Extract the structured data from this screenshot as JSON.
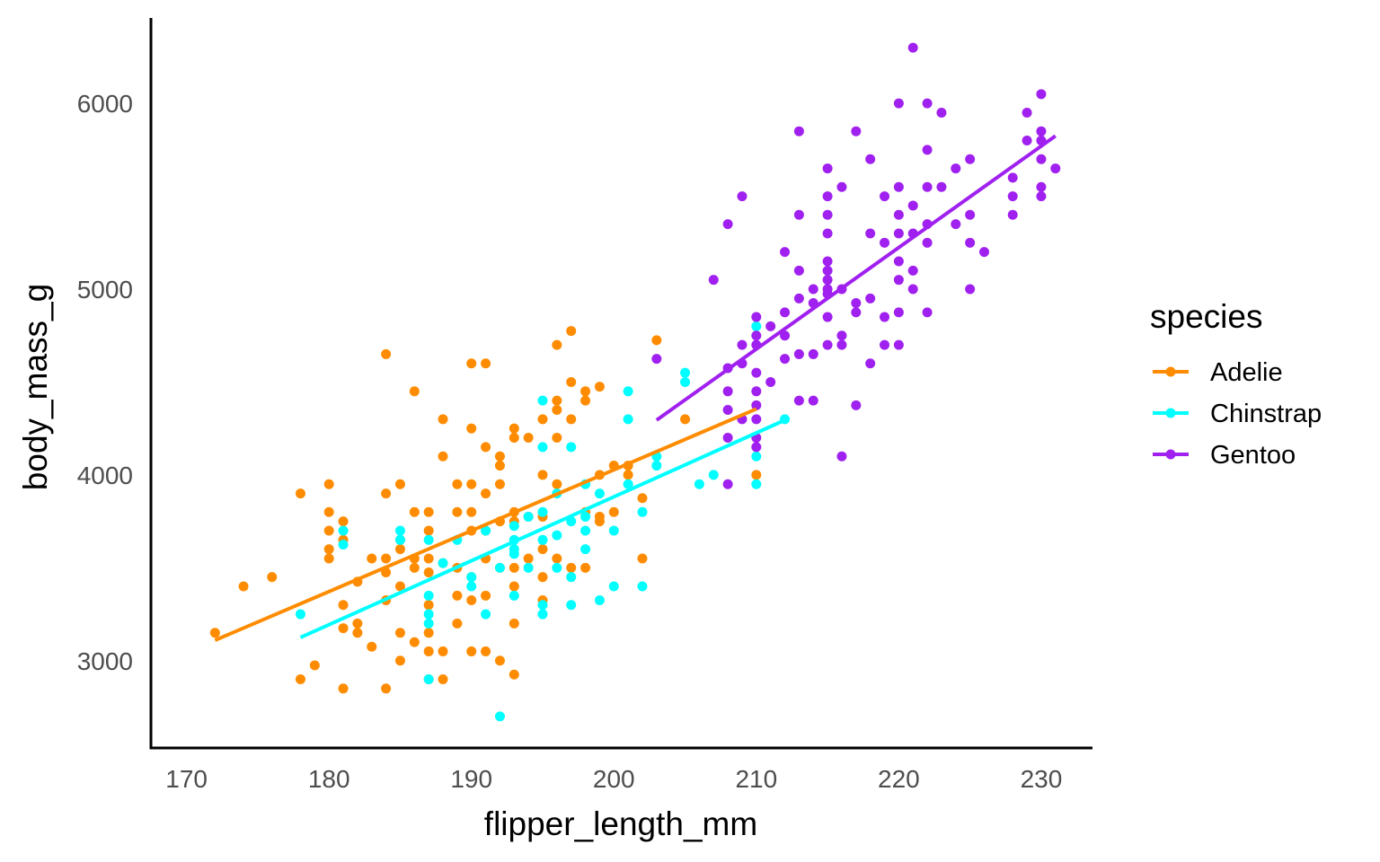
{
  "chart_data": {
    "type": "scatter",
    "title": "",
    "xlabel": "flipper_length_mm",
    "ylabel": "body_mass_g",
    "xlim": [
      167.5,
      233.6
    ],
    "ylim": [
      2530,
      6460
    ],
    "x_ticks": [
      170,
      180,
      190,
      200,
      210,
      220,
      230
    ],
    "y_ticks": [
      3000,
      4000,
      5000,
      6000
    ],
    "x_tick_labels": [
      "170",
      "180",
      "190",
      "200",
      "210",
      "220",
      "230"
    ],
    "y_tick_labels": [
      "3000",
      "4000",
      "5000",
      "6000"
    ],
    "grid": false,
    "legend": {
      "title": "species",
      "position": "right"
    },
    "series": [
      {
        "name": "Adelie",
        "color": "#FF8C00",
        "fit": {
          "x": [
            172,
            210
          ],
          "y": [
            3110,
            4355
          ]
        },
        "points": [
          [
            172,
            3150
          ],
          [
            174,
            3400
          ],
          [
            176,
            3450
          ],
          [
            178,
            3900
          ],
          [
            178,
            2900
          ],
          [
            179,
            2975
          ],
          [
            180,
            3950
          ],
          [
            180,
            3800
          ],
          [
            180,
            3700
          ],
          [
            180,
            3600
          ],
          [
            180,
            3550
          ],
          [
            181,
            3750
          ],
          [
            181,
            3650
          ],
          [
            181,
            3300
          ],
          [
            181,
            3175
          ],
          [
            181,
            2850
          ],
          [
            182,
            3200
          ],
          [
            182,
            3150
          ],
          [
            182,
            3425
          ],
          [
            183,
            3075
          ],
          [
            183,
            3550
          ],
          [
            184,
            4650
          ],
          [
            184,
            3900
          ],
          [
            184,
            3550
          ],
          [
            184,
            3475
          ],
          [
            184,
            3325
          ],
          [
            184,
            2850
          ],
          [
            185,
            3950
          ],
          [
            185,
            3650
          ],
          [
            185,
            3600
          ],
          [
            185,
            3400
          ],
          [
            185,
            3150
          ],
          [
            185,
            3000
          ],
          [
            186,
            4450
          ],
          [
            186,
            3800
          ],
          [
            186,
            3550
          ],
          [
            186,
            3500
          ],
          [
            186,
            3100
          ],
          [
            187,
            3800
          ],
          [
            187,
            3700
          ],
          [
            187,
            3550
          ],
          [
            187,
            3475
          ],
          [
            187,
            3300
          ],
          [
            187,
            3150
          ],
          [
            187,
            3050
          ],
          [
            187,
            2900
          ],
          [
            188,
            4300
          ],
          [
            188,
            4100
          ],
          [
            188,
            3525
          ],
          [
            188,
            3050
          ],
          [
            188,
            2900
          ],
          [
            189,
            3950
          ],
          [
            189,
            3800
          ],
          [
            189,
            3500
          ],
          [
            189,
            3350
          ],
          [
            189,
            3200
          ],
          [
            190,
            4600
          ],
          [
            190,
            4250
          ],
          [
            190,
            3950
          ],
          [
            190,
            3800
          ],
          [
            190,
            3700
          ],
          [
            190,
            3450
          ],
          [
            190,
            3325
          ],
          [
            190,
            3050
          ],
          [
            191,
            4600
          ],
          [
            191,
            4150
          ],
          [
            191,
            3900
          ],
          [
            191,
            3700
          ],
          [
            191,
            3550
          ],
          [
            191,
            3350
          ],
          [
            191,
            3050
          ],
          [
            192,
            4100
          ],
          [
            192,
            4050
          ],
          [
            192,
            3950
          ],
          [
            192,
            3750
          ],
          [
            192,
            3500
          ],
          [
            192,
            3000
          ],
          [
            193,
            4250
          ],
          [
            193,
            4200
          ],
          [
            193,
            3800
          ],
          [
            193,
            3750
          ],
          [
            193,
            3500
          ],
          [
            193,
            3400
          ],
          [
            193,
            3200
          ],
          [
            193,
            2925
          ],
          [
            194,
            4200
          ],
          [
            194,
            3775
          ],
          [
            194,
            3550
          ],
          [
            195,
            4300
          ],
          [
            195,
            4000
          ],
          [
            195,
            3775
          ],
          [
            195,
            3600
          ],
          [
            195,
            3450
          ],
          [
            195,
            3325
          ],
          [
            196,
            4700
          ],
          [
            196,
            4400
          ],
          [
            196,
            4350
          ],
          [
            196,
            4200
          ],
          [
            196,
            3950
          ],
          [
            196,
            3550
          ],
          [
            197,
            4775
          ],
          [
            197,
            4500
          ],
          [
            197,
            4300
          ],
          [
            197,
            3500
          ],
          [
            198,
            4450
          ],
          [
            198,
            4400
          ],
          [
            198,
            3800
          ],
          [
            198,
            3500
          ],
          [
            199,
            4475
          ],
          [
            199,
            4000
          ],
          [
            199,
            3775
          ],
          [
            199,
            3750
          ],
          [
            200,
            4050
          ],
          [
            200,
            3800
          ],
          [
            201,
            4050
          ],
          [
            201,
            4000
          ],
          [
            202,
            3875
          ],
          [
            202,
            3550
          ],
          [
            203,
            4725
          ],
          [
            205,
            4300
          ],
          [
            210,
            4000
          ]
        ]
      },
      {
        "name": "Chinstrap",
        "color": "#00FFFF",
        "fit": {
          "x": [
            178,
            212
          ],
          "y": [
            3125,
            4295
          ]
        },
        "points": [
          [
            178,
            3250
          ],
          [
            181,
            3700
          ],
          [
            181,
            3625
          ],
          [
            185,
            3700
          ],
          [
            185,
            3650
          ],
          [
            187,
            3650
          ],
          [
            187,
            3350
          ],
          [
            187,
            3250
          ],
          [
            187,
            3200
          ],
          [
            187,
            2900
          ],
          [
            188,
            3525
          ],
          [
            189,
            3650
          ],
          [
            190,
            3450
          ],
          [
            190,
            3400
          ],
          [
            191,
            3700
          ],
          [
            191,
            3250
          ],
          [
            192,
            3500
          ],
          [
            192,
            2700
          ],
          [
            193,
            3725
          ],
          [
            193,
            3650
          ],
          [
            193,
            3600
          ],
          [
            193,
            3575
          ],
          [
            193,
            3350
          ],
          [
            194,
            3775
          ],
          [
            194,
            3500
          ],
          [
            195,
            4400
          ],
          [
            195,
            4150
          ],
          [
            195,
            3800
          ],
          [
            195,
            3650
          ],
          [
            195,
            3300
          ],
          [
            195,
            3250
          ],
          [
            196,
            3900
          ],
          [
            196,
            3675
          ],
          [
            196,
            3500
          ],
          [
            197,
            4150
          ],
          [
            197,
            3750
          ],
          [
            197,
            3450
          ],
          [
            197,
            3300
          ],
          [
            198,
            3950
          ],
          [
            198,
            3775
          ],
          [
            198,
            3700
          ],
          [
            198,
            3600
          ],
          [
            199,
            3900
          ],
          [
            199,
            3325
          ],
          [
            200,
            3700
          ],
          [
            200,
            3400
          ],
          [
            201,
            4450
          ],
          [
            201,
            4300
          ],
          [
            201,
            3950
          ],
          [
            202,
            3800
          ],
          [
            202,
            3400
          ],
          [
            203,
            4100
          ],
          [
            203,
            4050
          ],
          [
            205,
            4550
          ],
          [
            205,
            4500
          ],
          [
            206,
            3950
          ],
          [
            207,
            4000
          ],
          [
            210,
            4800
          ],
          [
            210,
            4100
          ],
          [
            210,
            3950
          ],
          [
            212,
            4300
          ]
        ]
      },
      {
        "name": "Gentoo",
        "color": "#A020F0",
        "fit": {
          "x": [
            203,
            231
          ],
          "y": [
            4295,
            5825
          ]
        },
        "points": [
          [
            203,
            4625
          ],
          [
            207,
            5050
          ],
          [
            208,
            5350
          ],
          [
            208,
            4575
          ],
          [
            208,
            4450
          ],
          [
            208,
            4350
          ],
          [
            208,
            4200
          ],
          [
            208,
            3950
          ],
          [
            209,
            5500
          ],
          [
            209,
            4700
          ],
          [
            209,
            4600
          ],
          [
            209,
            4300
          ],
          [
            210,
            4850
          ],
          [
            210,
            4750
          ],
          [
            210,
            4700
          ],
          [
            210,
            4550
          ],
          [
            210,
            4450
          ],
          [
            210,
            4375
          ],
          [
            210,
            4300
          ],
          [
            210,
            4200
          ],
          [
            210,
            4150
          ],
          [
            211,
            4800
          ],
          [
            211,
            4500
          ],
          [
            212,
            5200
          ],
          [
            212,
            4875
          ],
          [
            212,
            4750
          ],
          [
            212,
            4625
          ],
          [
            213,
            5850
          ],
          [
            213,
            5400
          ],
          [
            213,
            5100
          ],
          [
            213,
            4950
          ],
          [
            213,
            4650
          ],
          [
            213,
            4400
          ],
          [
            214,
            5000
          ],
          [
            214,
            4925
          ],
          [
            214,
            4650
          ],
          [
            214,
            4400
          ],
          [
            215,
            5650
          ],
          [
            215,
            5500
          ],
          [
            215,
            5400
          ],
          [
            215,
            5300
          ],
          [
            215,
            5150
          ],
          [
            215,
            5100
          ],
          [
            215,
            5050
          ],
          [
            215,
            5000
          ],
          [
            215,
            4975
          ],
          [
            215,
            4850
          ],
          [
            215,
            4700
          ],
          [
            216,
            5550
          ],
          [
            216,
            5000
          ],
          [
            216,
            4750
          ],
          [
            216,
            4700
          ],
          [
            216,
            4100
          ],
          [
            217,
            5850
          ],
          [
            217,
            4925
          ],
          [
            217,
            4875
          ],
          [
            217,
            4375
          ],
          [
            218,
            5700
          ],
          [
            218,
            5300
          ],
          [
            218,
            4950
          ],
          [
            218,
            4600
          ],
          [
            219,
            5500
          ],
          [
            219,
            5250
          ],
          [
            219,
            4850
          ],
          [
            219,
            4700
          ],
          [
            220,
            6000
          ],
          [
            220,
            5550
          ],
          [
            220,
            5400
          ],
          [
            220,
            5300
          ],
          [
            220,
            5150
          ],
          [
            220,
            5050
          ],
          [
            220,
            4875
          ],
          [
            220,
            4700
          ],
          [
            221,
            6300
          ],
          [
            221,
            5450
          ],
          [
            221,
            5300
          ],
          [
            221,
            5100
          ],
          [
            221,
            5000
          ],
          [
            222,
            6000
          ],
          [
            222,
            5750
          ],
          [
            222,
            5550
          ],
          [
            222,
            5350
          ],
          [
            222,
            5250
          ],
          [
            222,
            4875
          ],
          [
            223,
            5950
          ],
          [
            223,
            5550
          ],
          [
            224,
            5650
          ],
          [
            224,
            5350
          ],
          [
            225,
            5700
          ],
          [
            225,
            5400
          ],
          [
            225,
            5250
          ],
          [
            225,
            5000
          ],
          [
            226,
            5200
          ],
          [
            228,
            5600
          ],
          [
            228,
            5500
          ],
          [
            228,
            5400
          ],
          [
            229,
            5950
          ],
          [
            229,
            5800
          ],
          [
            230,
            6050
          ],
          [
            230,
            5850
          ],
          [
            230,
            5800
          ],
          [
            230,
            5700
          ],
          [
            230,
            5550
          ],
          [
            230,
            5500
          ],
          [
            231,
            5650
          ]
        ]
      }
    ]
  }
}
